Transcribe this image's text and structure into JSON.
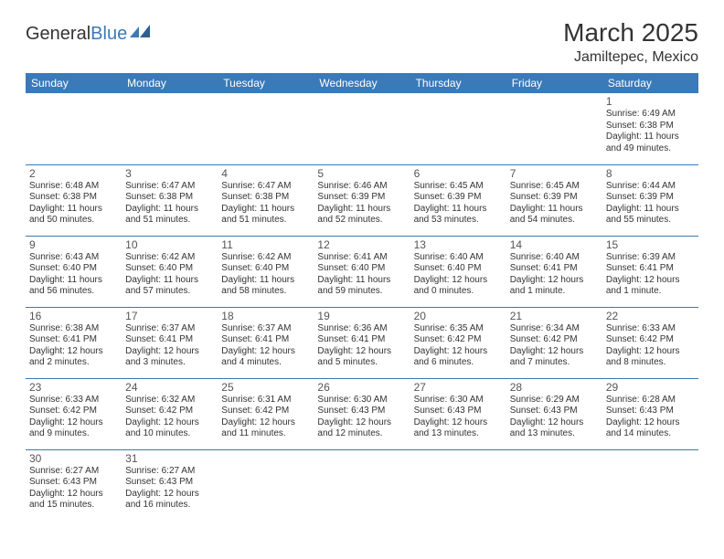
{
  "logo": {
    "text1": "General",
    "text2": "Blue"
  },
  "title": "March 2025",
  "location": "Jamiltepec, Mexico",
  "columns": [
    "Sunday",
    "Monday",
    "Tuesday",
    "Wednesday",
    "Thursday",
    "Friday",
    "Saturday"
  ],
  "colors": {
    "accent": "#3a7ab8",
    "background": "#ffffff",
    "text": "#333333"
  },
  "weeks": [
    [
      null,
      null,
      null,
      null,
      null,
      null,
      {
        "n": "1",
        "sr": "6:49 AM",
        "ss": "6:38 PM",
        "dl": "11 hours and 49 minutes."
      }
    ],
    [
      {
        "n": "2",
        "sr": "6:48 AM",
        "ss": "6:38 PM",
        "dl": "11 hours and 50 minutes."
      },
      {
        "n": "3",
        "sr": "6:47 AM",
        "ss": "6:38 PM",
        "dl": "11 hours and 51 minutes."
      },
      {
        "n": "4",
        "sr": "6:47 AM",
        "ss": "6:38 PM",
        "dl": "11 hours and 51 minutes."
      },
      {
        "n": "5",
        "sr": "6:46 AM",
        "ss": "6:39 PM",
        "dl": "11 hours and 52 minutes."
      },
      {
        "n": "6",
        "sr": "6:45 AM",
        "ss": "6:39 PM",
        "dl": "11 hours and 53 minutes."
      },
      {
        "n": "7",
        "sr": "6:45 AM",
        "ss": "6:39 PM",
        "dl": "11 hours and 54 minutes."
      },
      {
        "n": "8",
        "sr": "6:44 AM",
        "ss": "6:39 PM",
        "dl": "11 hours and 55 minutes."
      }
    ],
    [
      {
        "n": "9",
        "sr": "6:43 AM",
        "ss": "6:40 PM",
        "dl": "11 hours and 56 minutes."
      },
      {
        "n": "10",
        "sr": "6:42 AM",
        "ss": "6:40 PM",
        "dl": "11 hours and 57 minutes."
      },
      {
        "n": "11",
        "sr": "6:42 AM",
        "ss": "6:40 PM",
        "dl": "11 hours and 58 minutes."
      },
      {
        "n": "12",
        "sr": "6:41 AM",
        "ss": "6:40 PM",
        "dl": "11 hours and 59 minutes."
      },
      {
        "n": "13",
        "sr": "6:40 AM",
        "ss": "6:40 PM",
        "dl": "12 hours and 0 minutes."
      },
      {
        "n": "14",
        "sr": "6:40 AM",
        "ss": "6:41 PM",
        "dl": "12 hours and 1 minute."
      },
      {
        "n": "15",
        "sr": "6:39 AM",
        "ss": "6:41 PM",
        "dl": "12 hours and 1 minute."
      }
    ],
    [
      {
        "n": "16",
        "sr": "6:38 AM",
        "ss": "6:41 PM",
        "dl": "12 hours and 2 minutes."
      },
      {
        "n": "17",
        "sr": "6:37 AM",
        "ss": "6:41 PM",
        "dl": "12 hours and 3 minutes."
      },
      {
        "n": "18",
        "sr": "6:37 AM",
        "ss": "6:41 PM",
        "dl": "12 hours and 4 minutes."
      },
      {
        "n": "19",
        "sr": "6:36 AM",
        "ss": "6:41 PM",
        "dl": "12 hours and 5 minutes."
      },
      {
        "n": "20",
        "sr": "6:35 AM",
        "ss": "6:42 PM",
        "dl": "12 hours and 6 minutes."
      },
      {
        "n": "21",
        "sr": "6:34 AM",
        "ss": "6:42 PM",
        "dl": "12 hours and 7 minutes."
      },
      {
        "n": "22",
        "sr": "6:33 AM",
        "ss": "6:42 PM",
        "dl": "12 hours and 8 minutes."
      }
    ],
    [
      {
        "n": "23",
        "sr": "6:33 AM",
        "ss": "6:42 PM",
        "dl": "12 hours and 9 minutes."
      },
      {
        "n": "24",
        "sr": "6:32 AM",
        "ss": "6:42 PM",
        "dl": "12 hours and 10 minutes."
      },
      {
        "n": "25",
        "sr": "6:31 AM",
        "ss": "6:42 PM",
        "dl": "12 hours and 11 minutes."
      },
      {
        "n": "26",
        "sr": "6:30 AM",
        "ss": "6:43 PM",
        "dl": "12 hours and 12 minutes."
      },
      {
        "n": "27",
        "sr": "6:30 AM",
        "ss": "6:43 PM",
        "dl": "12 hours and 13 minutes."
      },
      {
        "n": "28",
        "sr": "6:29 AM",
        "ss": "6:43 PM",
        "dl": "12 hours and 13 minutes."
      },
      {
        "n": "29",
        "sr": "6:28 AM",
        "ss": "6:43 PM",
        "dl": "12 hours and 14 minutes."
      }
    ],
    [
      {
        "n": "30",
        "sr": "6:27 AM",
        "ss": "6:43 PM",
        "dl": "12 hours and 15 minutes."
      },
      {
        "n": "31",
        "sr": "6:27 AM",
        "ss": "6:43 PM",
        "dl": "12 hours and 16 minutes."
      },
      null,
      null,
      null,
      null,
      null
    ]
  ],
  "labels": {
    "sunrise": "Sunrise:",
    "sunset": "Sunset:",
    "daylight": "Daylight:"
  }
}
